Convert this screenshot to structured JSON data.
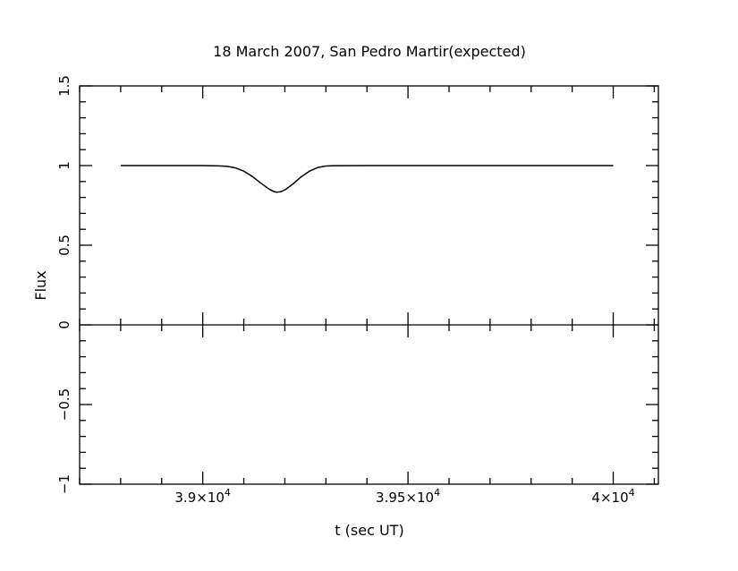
{
  "chart_data": {
    "type": "line",
    "title": "18 March 2007, San Pedro Martir(expected)",
    "xlabel": "t (sec UT)",
    "ylabel": "Flux",
    "xlim": [
      38700,
      40110
    ],
    "ylim": [
      -1,
      1.5
    ],
    "grid": false,
    "legend": "none",
    "x_ticks": [
      {
        "value": 39000,
        "mantissa": "3.9",
        "exponent": "4"
      },
      {
        "value": 39500,
        "mantissa": "3.95",
        "exponent": "4"
      },
      {
        "value": 40000,
        "mantissa": "4",
        "exponent": "4"
      }
    ],
    "y_ticks": [
      {
        "value": -1,
        "label": "−1"
      },
      {
        "value": -0.5,
        "label": "−0.5"
      },
      {
        "value": 0,
        "label": "0"
      },
      {
        "value": 0.5,
        "label": "0.5"
      },
      {
        "value": 1,
        "label": "1"
      },
      {
        "value": 1.5,
        "label": "1.5"
      }
    ],
    "zero_line": 0,
    "series": [
      {
        "color": "#000000",
        "points": [
          [
            38800,
            1.0
          ],
          [
            38900,
            1.0
          ],
          [
            39000,
            1.0
          ],
          [
            39040,
            0.998
          ],
          [
            39060,
            0.995
          ],
          [
            39080,
            0.985
          ],
          [
            39100,
            0.965
          ],
          [
            39120,
            0.933
          ],
          [
            39140,
            0.893
          ],
          [
            39160,
            0.855
          ],
          [
            39172,
            0.838
          ],
          [
            39180,
            0.833
          ],
          [
            39190,
            0.836
          ],
          [
            39200,
            0.847
          ],
          [
            39220,
            0.885
          ],
          [
            39240,
            0.93
          ],
          [
            39260,
            0.965
          ],
          [
            39280,
            0.988
          ],
          [
            39300,
            0.997
          ],
          [
            39320,
            0.999
          ],
          [
            39400,
            1.0
          ],
          [
            39600,
            1.0
          ],
          [
            39800,
            1.0
          ],
          [
            40000,
            1.0
          ]
        ]
      }
    ]
  }
}
